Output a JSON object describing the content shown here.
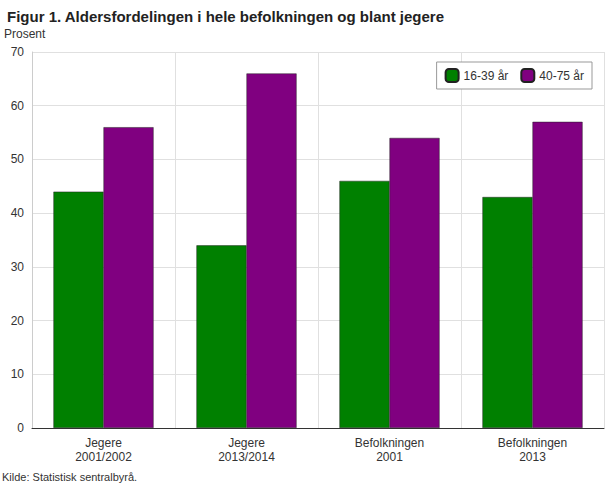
{
  "chart_data": {
    "type": "bar",
    "title": "Figur 1. Aldersfordelingen i hele befolkningen og blant jegere",
    "y_label": "Prosent",
    "source": "Kilde: Statistisk sentralbyrå.",
    "categories": [
      "Jegere\n2001/2002",
      "Jegere\n2013/2014",
      "Befolkningen\n2001",
      "Befolkningen\n2013"
    ],
    "series": [
      {
        "name": "16-39 år",
        "color": "#008000",
        "values": [
          44,
          34,
          46,
          43
        ]
      },
      {
        "name": "40-75 år",
        "color": "#800080",
        "values": [
          56,
          66,
          54,
          57
        ]
      }
    ],
    "ylim": [
      0,
      70
    ],
    "yticks": [
      0,
      10,
      20,
      30,
      40,
      50,
      60,
      70
    ],
    "grid": true,
    "legend": "top-right"
  }
}
